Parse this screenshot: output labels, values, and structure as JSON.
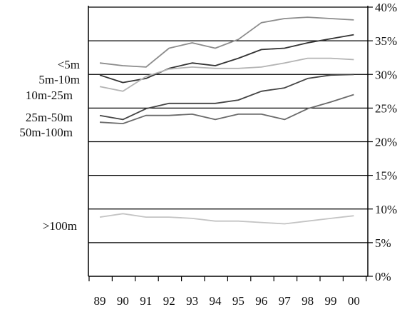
{
  "chart_data": {
    "type": "line",
    "title": "",
    "xlabel": "",
    "ylabel": "",
    "x": [
      "89",
      "90",
      "91",
      "92",
      "93",
      "94",
      "95",
      "96",
      "97",
      "98",
      "99",
      "00"
    ],
    "ylim": [
      0,
      40
    ],
    "yticks": [
      "0%",
      "5%",
      "10%",
      "15%",
      "20%",
      "25%",
      "30%",
      "35%",
      "40%"
    ],
    "grid": "horizontal",
    "legend": "left, labels beside series",
    "series": [
      {
        "name": "<5m",
        "color": "#8c8c8c",
        "values": [
          31.7,
          31.3,
          31.1,
          33.9,
          34.7,
          33.9,
          35.2,
          37.7,
          38.3,
          38.5,
          38.3,
          38.1
        ]
      },
      {
        "name": "5m-10m",
        "color": "#333333",
        "values": [
          29.9,
          28.8,
          29.4,
          30.9,
          31.7,
          31.3,
          32.4,
          33.7,
          33.9,
          34.7,
          35.3,
          35.9
        ]
      },
      {
        "name": "10m-25m",
        "color": "#b4b4b4",
        "values": [
          28.2,
          27.5,
          29.7,
          30.8,
          31.1,
          30.9,
          30.9,
          31.1,
          31.7,
          32.4,
          32.4,
          32.2
        ]
      },
      {
        "name": "25m-50m",
        "color": "#444444",
        "values": [
          23.9,
          23.3,
          24.9,
          25.7,
          25.7,
          25.7,
          26.2,
          27.5,
          28.0,
          29.4,
          29.9,
          30.0
        ]
      },
      {
        "name": "50m-100m",
        "color": "#6a6a6a",
        "values": [
          22.9,
          22.7,
          23.9,
          23.9,
          24.1,
          23.3,
          24.1,
          24.1,
          23.3,
          24.9,
          25.9,
          27.0
        ]
      },
      {
        "name": ">100m",
        "color": "#c4c4c4",
        "values": [
          8.8,
          9.3,
          8.8,
          8.8,
          8.6,
          8.2,
          8.2,
          8.0,
          7.8,
          8.2,
          8.6,
          9.0
        ]
      }
    ]
  }
}
